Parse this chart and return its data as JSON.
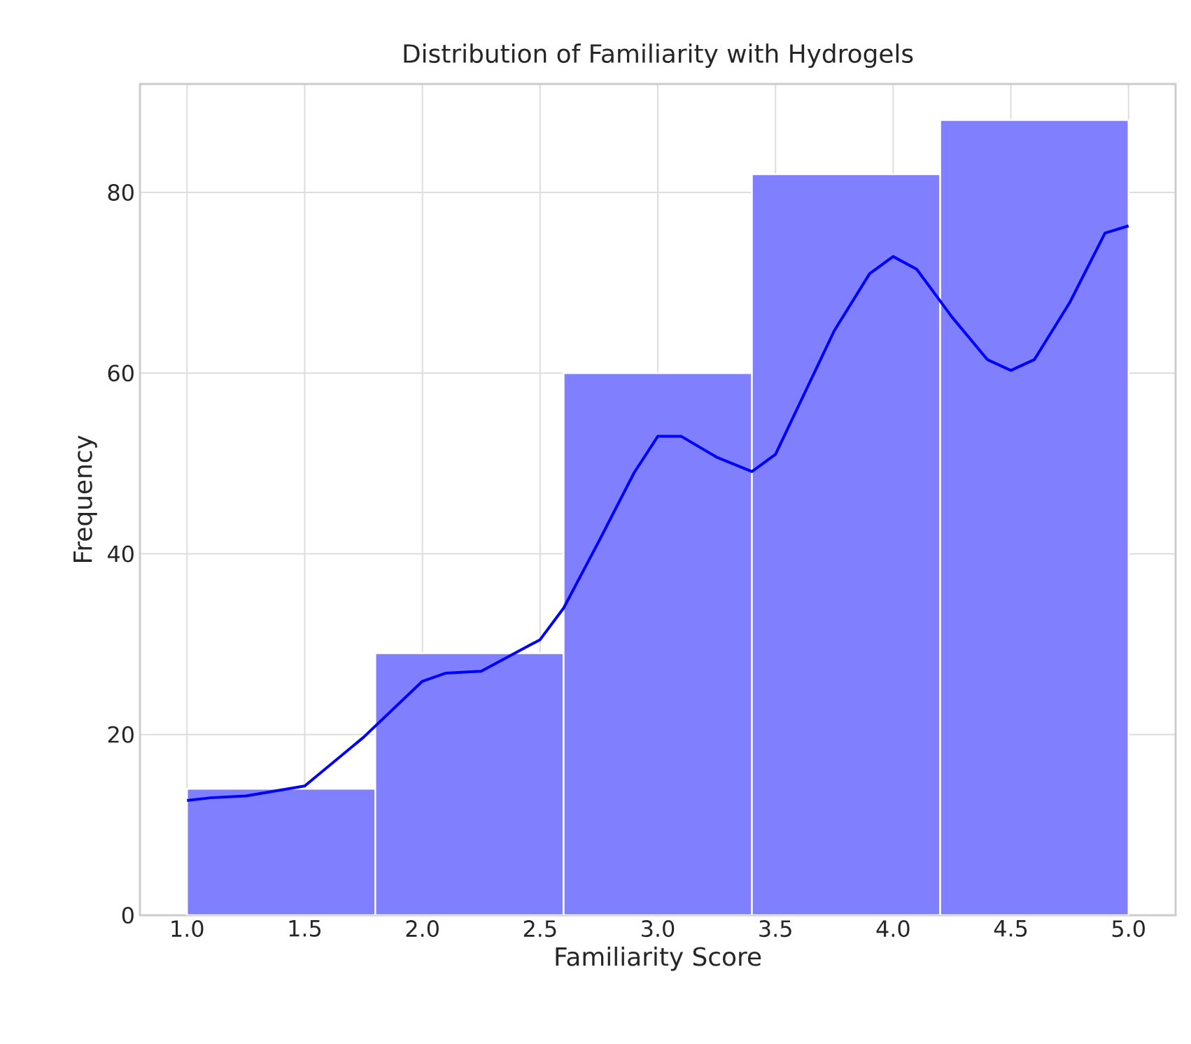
{
  "chart_data": {
    "type": "histogram",
    "title": "Distribution of Familiarity with Hydrogels",
    "xlabel": "Familiarity Score",
    "ylabel": "Frequency",
    "xlim": [
      0.8,
      5.2
    ],
    "ylim": [
      0,
      92
    ],
    "xticks": [
      {
        "value": 1,
        "label": "1.0"
      },
      {
        "value": 1.5,
        "label": "1.5"
      },
      {
        "value": 2,
        "label": "2.0"
      },
      {
        "value": 2.5,
        "label": "2.5"
      },
      {
        "value": 3,
        "label": "3.0"
      },
      {
        "value": 3.5,
        "label": "3.5"
      },
      {
        "value": 4,
        "label": "4.0"
      },
      {
        "value": 4.5,
        "label": "4.5"
      },
      {
        "value": 5,
        "label": "5.0"
      }
    ],
    "yticks": [
      0,
      20,
      40,
      60,
      80
    ],
    "grid": true,
    "series": [
      {
        "color": "#8080ff",
        "bins": [
          1.0,
          1.8,
          2.6,
          3.4,
          4.2,
          5.0
        ],
        "values": [
          14,
          29,
          60,
          82,
          88
        ]
      },
      {
        "type": "line",
        "color": "#0000ff",
        "x": [
          1.0,
          1.1,
          1.25,
          1.5,
          1.75,
          2.0,
          2.1,
          2.25,
          2.5,
          2.6,
          2.75,
          2.9,
          3.0,
          3.1,
          3.25,
          3.4,
          3.5,
          3.75,
          3.9,
          4.0,
          4.1,
          4.25,
          4.4,
          4.5,
          4.6,
          4.75,
          4.9,
          5.0
        ],
        "values": [
          12.7,
          13,
          13.2,
          14.3,
          19.7,
          25.9,
          26.8,
          27,
          30.5,
          34,
          41.4,
          49,
          53,
          53,
          50.7,
          49.1,
          51,
          64.7,
          71,
          72.9,
          71.5,
          66.2,
          61.5,
          60.3,
          61.5,
          67.8,
          75.5,
          76.3
        ]
      }
    ]
  }
}
